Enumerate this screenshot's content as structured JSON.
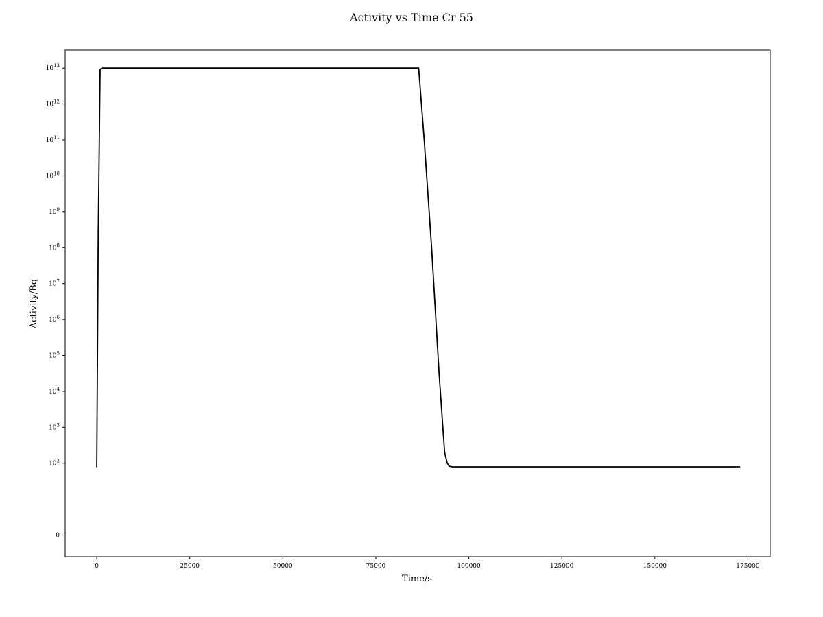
{
  "chart_data": {
    "type": "line",
    "title": "Activity vs Time Cr 55",
    "xlabel": "Time/s",
    "ylabel": "Activity/Bq",
    "y_scale": "symlog",
    "grid": false,
    "x_range": [
      -8500,
      181000
    ],
    "y_range_exponent": [
      -0.6,
      13.5
    ],
    "x_ticks": [
      {
        "value": 0,
        "label": "0"
      },
      {
        "value": 25000,
        "label": "25000"
      },
      {
        "value": 50000,
        "label": "50000"
      },
      {
        "value": 75000,
        "label": "75000"
      },
      {
        "value": 100000,
        "label": "100000"
      },
      {
        "value": 125000,
        "label": "125000"
      },
      {
        "value": 150000,
        "label": "150000"
      },
      {
        "value": 175000,
        "label": "175000"
      }
    ],
    "y_ticks": [
      {
        "exp": 0,
        "label": "0",
        "kind": "zero"
      },
      {
        "exp": 2,
        "base": "10",
        "sup": "2"
      },
      {
        "exp": 3,
        "base": "10",
        "sup": "3"
      },
      {
        "exp": 4,
        "base": "10",
        "sup": "4"
      },
      {
        "exp": 5,
        "base": "10",
        "sup": "5"
      },
      {
        "exp": 6,
        "base": "10",
        "sup": "6"
      },
      {
        "exp": 7,
        "base": "10",
        "sup": "7"
      },
      {
        "exp": 8,
        "base": "10",
        "sup": "8"
      },
      {
        "exp": 9,
        "base": "10",
        "sup": "9"
      },
      {
        "exp": 10,
        "base": "10",
        "sup": "10"
      },
      {
        "exp": 11,
        "base": "10",
        "sup": "11"
      },
      {
        "exp": 12,
        "base": "10",
        "sup": "12"
      },
      {
        "exp": 13,
        "base": "10",
        "sup": "13"
      }
    ],
    "series": [
      {
        "color": "#000000",
        "x": [
          0,
          400,
          900,
          1500,
          3000,
          10000,
          86500,
          88000,
          90000,
          92000,
          93500,
          94200,
          94700,
          95500,
          96500,
          172800
        ],
        "y_exponent": [
          1.9,
          8.5,
          12.97,
          13.0,
          13.0,
          13.0,
          13.0,
          11.0,
          8.0,
          4.5,
          2.3,
          2.0,
          1.92,
          1.9,
          1.9,
          1.9
        ]
      }
    ]
  }
}
